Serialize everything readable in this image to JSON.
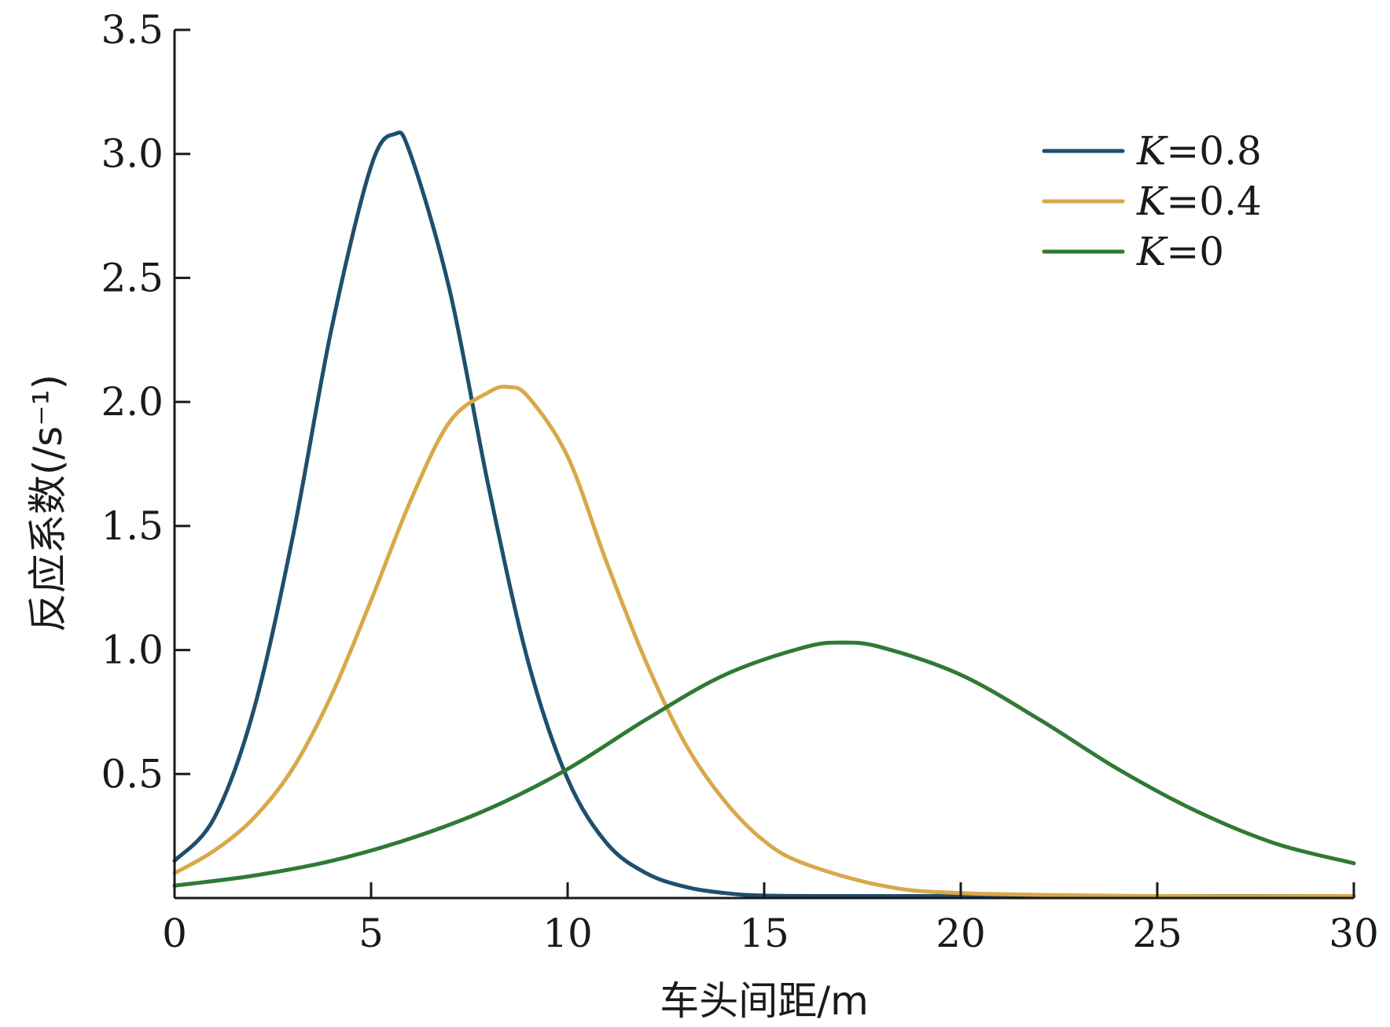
{
  "chart_data": {
    "type": "line",
    "xlabel": "车头间距/m",
    "ylabel": "反应系数(/s⁻¹)",
    "xlim": [
      0,
      30
    ],
    "ylim": [
      0,
      3.5
    ],
    "x_ticks": [
      0,
      5,
      10,
      15,
      20,
      25,
      30
    ],
    "x_tick_labels": [
      "0",
      "5",
      "10",
      "15",
      "20",
      "25",
      "30"
    ],
    "y_ticks": [
      0.5,
      1.0,
      1.5,
      2.0,
      2.5,
      3.0,
      3.5
    ],
    "y_tick_labels": [
      "0.5",
      "1.0",
      "1.5",
      "2.0",
      "2.5",
      "3.0",
      "3.5"
    ],
    "grid": false,
    "legend_position": "top-right",
    "series": [
      {
        "name": "K=0.8",
        "name_var": "K",
        "name_rest": "=0.8",
        "color": "#1f4f6e",
        "x": [
          0,
          1,
          2,
          3,
          4,
          5,
          5.6,
          6,
          7,
          8,
          9,
          10,
          11,
          12,
          13,
          14,
          15,
          17,
          20,
          25,
          30
        ],
        "y": [
          0.15,
          0.32,
          0.75,
          1.45,
          2.3,
          2.95,
          3.08,
          3.0,
          2.45,
          1.65,
          0.95,
          0.48,
          0.22,
          0.1,
          0.045,
          0.02,
          0.01,
          0.003,
          0.0,
          0.0,
          0.0
        ]
      },
      {
        "name": "K=0.4",
        "name_var": "K",
        "name_rest": "=0.4",
        "color": "#d9a84a",
        "x": [
          0,
          1,
          2,
          3,
          4,
          5,
          6,
          7,
          8,
          8.5,
          9,
          10,
          11,
          12,
          13,
          14,
          15,
          16,
          18,
          20,
          25,
          30
        ],
        "y": [
          0.1,
          0.19,
          0.32,
          0.52,
          0.82,
          1.2,
          1.6,
          1.92,
          2.04,
          2.06,
          2.02,
          1.78,
          1.35,
          0.95,
          0.62,
          0.39,
          0.23,
          0.14,
          0.05,
          0.02,
          0.002,
          0.0
        ]
      },
      {
        "name": "K=0",
        "name_var": "K",
        "name_rest": "=0",
        "color": "#2f7a34",
        "x": [
          0,
          2,
          4,
          6,
          8,
          10,
          12,
          14,
          16,
          17,
          18,
          20,
          22,
          24,
          26,
          28,
          30
        ],
        "y": [
          0.05,
          0.09,
          0.15,
          0.24,
          0.36,
          0.52,
          0.72,
          0.9,
          1.01,
          1.03,
          1.01,
          0.9,
          0.72,
          0.52,
          0.35,
          0.22,
          0.14
        ]
      }
    ]
  }
}
